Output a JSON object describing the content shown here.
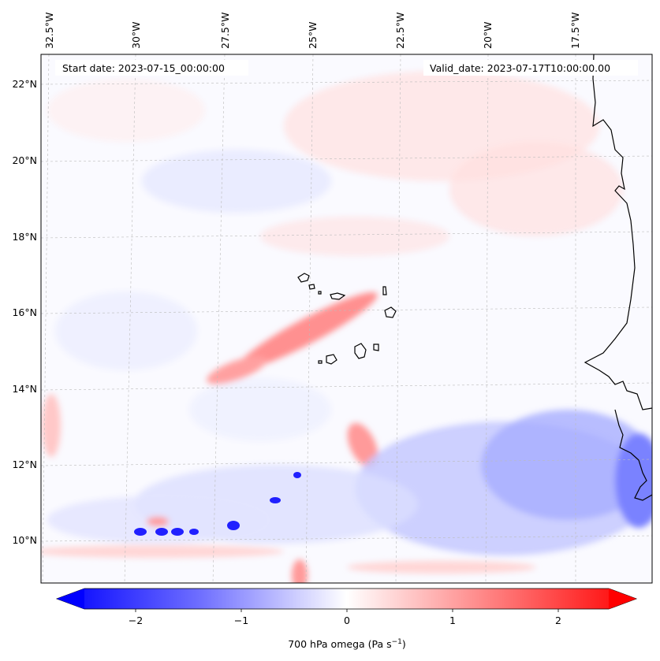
{
  "map": {
    "annotations": {
      "start_date": "Start date: 2023-07-15_00:00:00",
      "valid_date": "Valid_date: 2023-07-17T10:00:00.00"
    },
    "lon_labels": [
      "32.5°W",
      "30°W",
      "27.5°W",
      "25°W",
      "22.5°W",
      "20°W",
      "17.5°W"
    ],
    "lat_labels": [
      "22°N",
      "20°N",
      "18°N",
      "16°N",
      "14°N",
      "12°N",
      "10°N"
    ],
    "colorbar": {
      "ticks": [
        "−2",
        "−1",
        "0",
        "1",
        "2"
      ],
      "label": "700 hPa omega (Pa s",
      "label_sup": "−1",
      "label_close": ")",
      "range": [
        -2.6,
        2.6
      ]
    },
    "colors": {
      "negative": "#0000ff",
      "neutral": "#ffffff",
      "positive": "#ff0000",
      "coastline": "#000000",
      "grid": "#bbbbbb"
    },
    "features": [
      "Cape Verde Islands",
      "West African coastline"
    ]
  }
}
